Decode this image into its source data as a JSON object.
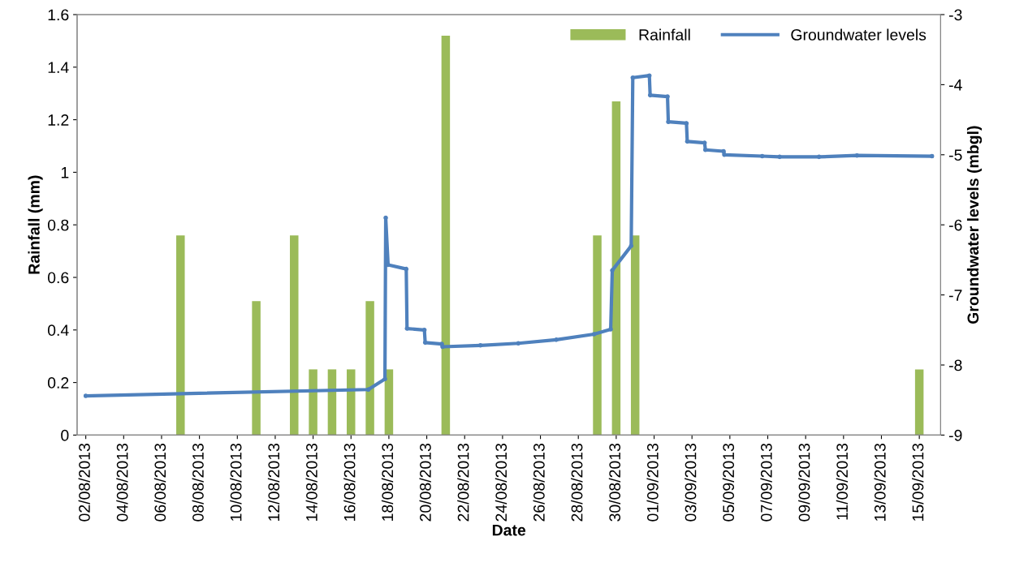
{
  "chart_data": {
    "type": "bar",
    "xlabel": "Date",
    "ylabel": "Rainfall (mm)",
    "y2label": "Groundwater levels (mbgl)",
    "xlim": [
      "2013-08-01T13:00",
      "2013-09-16T03:00"
    ],
    "xticks": [
      {
        "value": "2013-08-02",
        "label": "02/08/2013"
      },
      {
        "value": "2013-08-04",
        "label": "04/08/2013"
      },
      {
        "value": "2013-08-06",
        "label": "06/08/2013"
      },
      {
        "value": "2013-08-08",
        "label": "08/08/2013"
      },
      {
        "value": "2013-08-10",
        "label": "10/08/2013"
      },
      {
        "value": "2013-08-12",
        "label": "12/08/2013"
      },
      {
        "value": "2013-08-14",
        "label": "14/08/2013"
      },
      {
        "value": "2013-08-16",
        "label": "16/08/2013"
      },
      {
        "value": "2013-08-18",
        "label": "18/08/2013"
      },
      {
        "value": "2013-08-20",
        "label": "20/08/2013"
      },
      {
        "value": "2013-08-22",
        "label": "22/08/2013"
      },
      {
        "value": "2013-08-24",
        "label": "24/08/2013"
      },
      {
        "value": "2013-08-26",
        "label": "26/08/2013"
      },
      {
        "value": "2013-08-28",
        "label": "28/08/2013"
      },
      {
        "value": "2013-08-30",
        "label": "30/08/2013"
      },
      {
        "value": "2013-09-01",
        "label": "01/09/2013"
      },
      {
        "value": "2013-09-03",
        "label": "03/09/2013"
      },
      {
        "value": "2013-09-05",
        "label": "05/09/2013"
      },
      {
        "value": "2013-09-07",
        "label": "07/09/2013"
      },
      {
        "value": "2013-09-09",
        "label": "09/09/2013"
      },
      {
        "value": "2013-09-11",
        "label": "11/09/2013"
      },
      {
        "value": "2013-09-13",
        "label": "13/09/2013"
      },
      {
        "value": "2013-09-15",
        "label": "15/09/2013"
      }
    ],
    "ylim": [
      0,
      1.6
    ],
    "yticks": [
      0,
      0.2,
      0.4,
      0.6,
      0.8,
      1,
      1.2,
      1.4,
      1.6
    ],
    "y2lim": [
      -9,
      -3
    ],
    "y2ticks": [
      -9,
      -8,
      -7,
      -6,
      -5,
      -4,
      -3
    ],
    "grid": false,
    "legend": "top right",
    "series": [
      {
        "name": "Rainfall",
        "color": "#9bbb59",
        "x": [
          "2013-08-07",
          "2013-08-11",
          "2013-08-13",
          "2013-08-14",
          "2013-08-15",
          "2013-08-16",
          "2013-08-17",
          "2013-08-18",
          "2013-08-21",
          "2013-08-29",
          "2013-08-30",
          "2013-08-31",
          "2013-09-15"
        ],
        "values": [
          0.76,
          0.51,
          0.76,
          0.25,
          0.25,
          0.25,
          0.51,
          0.25,
          1.52,
          0.76,
          1.27,
          0.76,
          0.25
        ]
      },
      {
        "name": "Groundwater levels",
        "type": "line",
        "axis": "y2",
        "color": "#4f81bd",
        "marker": "circle",
        "line_style": "solid",
        "x": [
          "2013-08-02",
          "2013-08-16T22:00",
          "2013-08-17T19:00",
          "2013-08-17T20:00",
          "2013-08-17T23:00",
          "2013-08-18T22:00",
          "2013-08-18T23:00",
          "2013-08-19T21:00",
          "2013-08-19T22:00",
          "2013-08-20T19:00",
          "2013-08-20T20:00",
          "2013-08-22T20:00",
          "2013-08-24T20:00",
          "2013-08-26T20:00",
          "2013-08-28T20:00",
          "2013-08-29T17:00",
          "2013-08-29T19:00",
          "2013-08-30T19:00",
          "2013-08-30T21:00",
          "2013-08-31T18:00",
          "2013-08-31T19:00",
          "2013-09-01T17:00",
          "2013-09-01T18:00",
          "2013-09-02T17:00",
          "2013-09-02T18:00",
          "2013-09-03T16:00",
          "2013-09-03T17:00",
          "2013-09-04T16:00",
          "2013-09-04T17:00",
          "2013-09-06T17:00",
          "2013-09-07T15:00",
          "2013-09-09T17:00",
          "2013-09-11T17:00",
          "2013-09-15T16:00"
        ],
        "values": [
          -8.44,
          -8.35,
          -8.2,
          -5.9,
          -6.57,
          -6.63,
          -7.48,
          -7.5,
          -7.68,
          -7.7,
          -7.74,
          -7.72,
          -7.69,
          -7.64,
          -7.56,
          -7.49,
          -6.65,
          -6.3,
          -3.9,
          -3.87,
          -4.15,
          -4.17,
          -4.53,
          -4.55,
          -4.81,
          -4.83,
          -4.93,
          -4.95,
          -5.0,
          -5.02,
          -5.03,
          -5.03,
          -5.01,
          -5.02
        ]
      }
    ]
  }
}
